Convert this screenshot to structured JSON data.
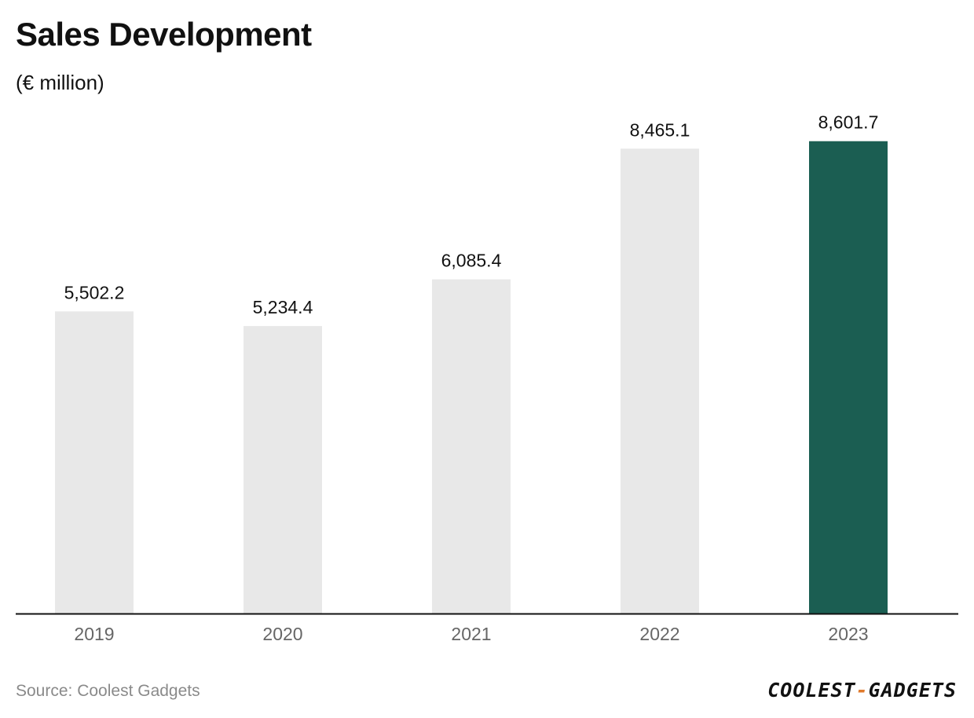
{
  "header": {
    "title": "Sales Development",
    "subtitle": "(€ million)"
  },
  "footer": {
    "source": "Source: Coolest Gadgets",
    "brand_left": "COOLEST",
    "brand_dash": "-",
    "brand_right": "GADGETS"
  },
  "colors": {
    "bar_default": "#e8e8e8",
    "bar_highlight": "#1b5e52",
    "axis_line": "#111111",
    "tick_label": "#666666",
    "value_label": "#111111",
    "brand_accent": "#e07a2c"
  },
  "chart_data": {
    "type": "bar",
    "title": "Sales Development",
    "subtitle": "(€ million)",
    "categories": [
      "2019",
      "2020",
      "2021",
      "2022",
      "2023"
    ],
    "values": [
      5502.2,
      5234.4,
      6085.4,
      8465.1,
      8601.7
    ],
    "value_labels": [
      "5,502.2",
      "5,234.4",
      "6,085.4",
      "8,465.1",
      "8,601.7"
    ],
    "highlight_category": "2023",
    "ylim": [
      0,
      10000
    ],
    "grid": false,
    "legend": "none"
  }
}
